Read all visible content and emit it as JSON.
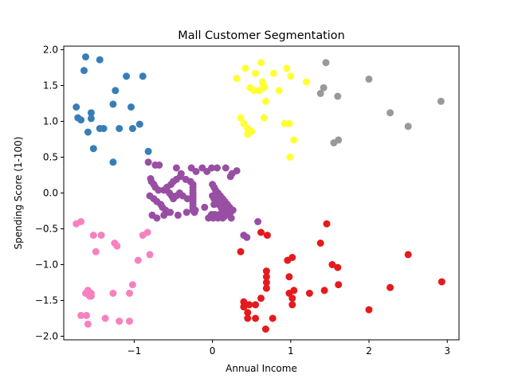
{
  "chart_data": {
    "type": "scatter",
    "title": "Mall Customer Segmentation",
    "xlabel": "Annual Income",
    "ylabel": "Spending Score (1-100)",
    "xlim": [
      -1.9,
      3.15
    ],
    "ylim": [
      -2.05,
      2.05
    ],
    "x_ticks": [
      -1,
      0,
      1,
      2,
      3
    ],
    "x_tick_labels": [
      "−1",
      "0",
      "1",
      "2",
      "3"
    ],
    "y_ticks": [
      -2.0,
      -1.5,
      -1.0,
      -0.5,
      0.0,
      0.5,
      1.0,
      1.5,
      2.0
    ],
    "y_tick_labels": [
      "−2.0",
      "−1.5",
      "−1.0",
      "−0.5",
      "0.0",
      "0.5",
      "1.0",
      "1.5",
      "2.0"
    ],
    "grid": false,
    "legend": "none",
    "series": [
      {
        "color": "#377eb8",
        "x": [
          -1.62,
          -1.44,
          -1.1,
          -0.89,
          -1.74,
          -1.72,
          -1.68,
          -1.55,
          -1.55,
          -1.27,
          -1.04,
          -0.93,
          -1.64,
          -1.44,
          -1.39,
          -1.19,
          -1.02,
          -1.52,
          -0.82,
          -1.27,
          -1.59,
          -1.24
        ],
        "y": [
          1.9,
          1.86,
          1.63,
          1.63,
          1.2,
          1.05,
          1.02,
          1.12,
          1.04,
          1.24,
          1.2,
          0.96,
          1.71,
          0.9,
          0.9,
          0.9,
          0.9,
          0.62,
          0.58,
          0.43,
          0.85,
          1.43
        ]
      },
      {
        "color": "#ffff33",
        "x": [
          0.42,
          0.55,
          0.62,
          0.78,
          0.95,
          1.2,
          0.31,
          0.48,
          0.64,
          0.66,
          0.85,
          0.68,
          0.36,
          0.4,
          0.45,
          0.5,
          0.66,
          0.92,
          0.98,
          1.04,
          0.99,
          1.0,
          0.65,
          0.6,
          0.53,
          0.45
        ],
        "y": [
          1.74,
          1.67,
          1.82,
          1.67,
          1.74,
          1.55,
          1.6,
          1.47,
          1.55,
          1.47,
          1.43,
          1.28,
          1.05,
          0.97,
          0.9,
          0.86,
          1.05,
          0.97,
          0.97,
          0.74,
          0.5,
          1.63,
          1.51,
          1.43,
          1.43,
          0.82
        ]
      },
      {
        "color": "#999999",
        "x": [
          1.45,
          2.0,
          1.42,
          1.38,
          1.6,
          2.27,
          2.92,
          2.5,
          1.55,
          1.61
        ],
        "y": [
          1.82,
          1.59,
          1.47,
          1.39,
          1.35,
          1.12,
          1.28,
          0.93,
          0.7,
          0.74
        ]
      },
      {
        "color": "#984ea3",
        "x": [
          -0.82,
          -0.73,
          -0.68,
          -0.46,
          -0.4,
          -0.27,
          -0.21,
          -0.13,
          -0.07,
          -0.01,
          0.06,
          0.17,
          0.31,
          0.25,
          0.23,
          -0.79,
          -0.78,
          -0.75,
          -0.73,
          -0.69,
          -0.62,
          -0.58,
          -0.53,
          -0.5,
          -0.46,
          -0.41,
          -0.34,
          -0.28,
          -0.25,
          -0.25,
          -0.25,
          -0.25,
          -0.25,
          -0.25,
          -0.25,
          -0.25,
          -0.25,
          -0.25,
          -0.23,
          -0.8,
          -0.75,
          -0.71,
          -0.66,
          -0.64,
          -0.6,
          -0.57,
          -0.55,
          -0.52,
          -0.5,
          -0.46,
          -0.42,
          -0.38,
          -0.32,
          0.0,
          0.02,
          0.04,
          0.07,
          0.1,
          0.13,
          0.16,
          0.19,
          0.22,
          0.26,
          0.0,
          0.02,
          0.05,
          0.08,
          0.11,
          0.14,
          0.17,
          0.2,
          0.23,
          0.26,
          -0.01,
          0.03,
          0.06,
          0.09,
          0.12,
          0.15,
          0.18,
          0.21,
          0.24,
          -0.77,
          -0.71,
          -0.62,
          -0.54,
          -0.44,
          -0.33,
          -0.22,
          -0.1,
          0.02,
          0.12,
          0.24,
          -0.05,
          -0.02,
          0.01,
          0.04,
          0.07,
          0.1,
          0.13,
          0.17,
          0.58,
          0.4,
          0.44
        ],
        "y": [
          0.43,
          0.39,
          0.39,
          0.35,
          0.27,
          0.35,
          0.3,
          0.35,
          0.3,
          0.35,
          0.35,
          0.35,
          0.31,
          0.27,
          0.23,
          0.2,
          0.16,
          0.12,
          0.08,
          0.04,
          0.04,
          0.08,
          0.12,
          0.16,
          0.19,
          0.23,
          0.19,
          0.16,
          0.12,
          0.08,
          0.04,
          0.0,
          -0.04,
          -0.08,
          -0.12,
          -0.16,
          -0.2,
          -0.24,
          -0.27,
          -0.04,
          -0.08,
          -0.12,
          -0.16,
          -0.2,
          -0.24,
          -0.27,
          0.0,
          -0.04,
          -0.08,
          -0.04,
          0.0,
          -0.04,
          -0.08,
          0.12,
          0.08,
          0.04,
          0.0,
          -0.04,
          -0.08,
          -0.12,
          -0.16,
          -0.2,
          -0.24,
          -0.04,
          -0.08,
          -0.12,
          -0.16,
          -0.2,
          -0.24,
          -0.27,
          -0.3,
          -0.27,
          -0.24,
          -0.3,
          -0.3,
          -0.33,
          -0.3,
          -0.27,
          -0.33,
          -0.3,
          -0.27,
          -0.35,
          -0.31,
          -0.35,
          -0.31,
          -0.27,
          -0.31,
          -0.27,
          -0.24,
          -0.2,
          -0.16,
          -0.2,
          -0.24,
          -0.35,
          -0.32,
          -0.35,
          -0.31,
          -0.35,
          -0.31,
          -0.35,
          -0.3,
          -0.4,
          -0.59,
          -0.62
        ]
      },
      {
        "color": "#e41a1c",
        "x": [
          0.62,
          0.7,
          1.46,
          1.38,
          2.5,
          1.53,
          1.6,
          0.36,
          0.96,
          1.02,
          0.98,
          0.69,
          0.69,
          0.69,
          0.69,
          1.61,
          0.98,
          1.04,
          1.24,
          1.43,
          1.02,
          1.02,
          0.62,
          0.55,
          0.47,
          0.4,
          0.4,
          0.45,
          0.45,
          0.55,
          0.77,
          0.68,
          2.0,
          2.27,
          2.93
        ],
        "y": [
          -0.55,
          -0.59,
          -0.43,
          -0.7,
          -0.86,
          -1.0,
          -1.04,
          -0.82,
          -0.94,
          -0.9,
          -1.17,
          -1.09,
          -1.17,
          -1.25,
          -1.33,
          -1.28,
          -1.4,
          -1.36,
          -1.4,
          -1.36,
          -1.47,
          -1.56,
          -1.47,
          -1.56,
          -1.56,
          -1.52,
          -1.59,
          -1.67,
          -1.75,
          -1.75,
          -1.75,
          -1.9,
          -1.63,
          -1.32,
          -1.24
        ]
      },
      {
        "color": "#f781bf",
        "x": [
          -1.74,
          -1.68,
          -1.52,
          -1.42,
          -1.25,
          -1.22,
          -0.89,
          -0.83,
          -0.8,
          -1.49,
          -0.95,
          -1.02,
          -1.62,
          -1.59,
          -1.55,
          -1.55,
          -1.57,
          -1.27,
          -1.06,
          -1.37,
          -1.19,
          -1.06,
          -1.68,
          -1.61,
          -1.59
        ],
        "y": [
          -0.43,
          -0.4,
          -0.59,
          -0.59,
          -0.7,
          -0.74,
          -0.59,
          -0.55,
          -0.86,
          -0.82,
          -0.94,
          -1.28,
          -1.4,
          -1.36,
          -1.4,
          -1.44,
          -1.44,
          -1.4,
          -1.4,
          -1.75,
          -1.79,
          -1.79,
          -1.71,
          -1.71,
          -1.83
        ]
      }
    ]
  }
}
